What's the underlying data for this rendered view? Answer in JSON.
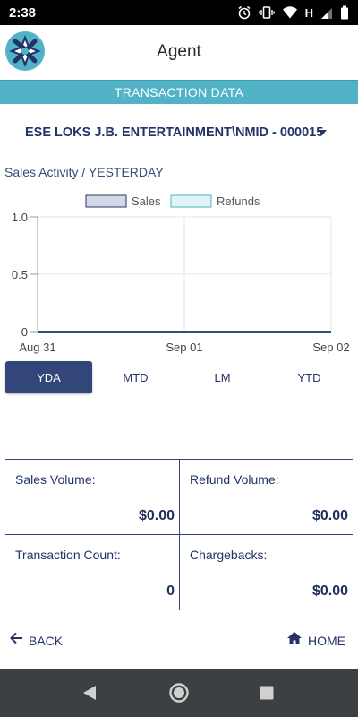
{
  "status_bar": {
    "time": "2:38",
    "network_letter": "H"
  },
  "header": {
    "title": "Agent",
    "logo_icon": "compass-logo"
  },
  "section": {
    "title": "TRANSACTION DATA"
  },
  "merchant": {
    "selected": "ESE LOKS J.B. ENTERTAINMENT\\NMID - 000015"
  },
  "activity": {
    "label": "Sales Activity / YESTERDAY"
  },
  "chart_data": {
    "type": "area",
    "x": [
      "Aug 31",
      "Sep 01",
      "Sep 02"
    ],
    "series": [
      {
        "name": "Sales",
        "values": [
          0,
          0,
          0
        ],
        "color": "#d3d9e6",
        "stroke": "#23336a"
      },
      {
        "name": "Refunds",
        "values": [
          0,
          0,
          0
        ],
        "color": "#dff4f7",
        "stroke": "#52b3c6"
      }
    ],
    "yticks": [
      "1.0",
      "0.5",
      "0"
    ],
    "ylim": [
      0,
      1
    ],
    "grid": true,
    "legend": "top-center"
  },
  "tabs": [
    {
      "label": "YDA",
      "active": true
    },
    {
      "label": "MTD",
      "active": false
    },
    {
      "label": "LM",
      "active": false
    },
    {
      "label": "YTD",
      "active": false
    }
  ],
  "summary": {
    "sales_volume_label": "Sales Volume:",
    "sales_volume_value": "$0.00",
    "refund_volume_label": "Refund Volume:",
    "refund_volume_value": "$0.00",
    "transaction_count_label": "Transaction Count:",
    "transaction_count_value": "0",
    "chargebacks_label": "Chargebacks:",
    "chargebacks_value": "$0.00"
  },
  "nav": {
    "back_label": "BACK",
    "home_label": "HOME"
  },
  "colors": {
    "accent": "#52b3c6",
    "primary": "#33467a"
  }
}
